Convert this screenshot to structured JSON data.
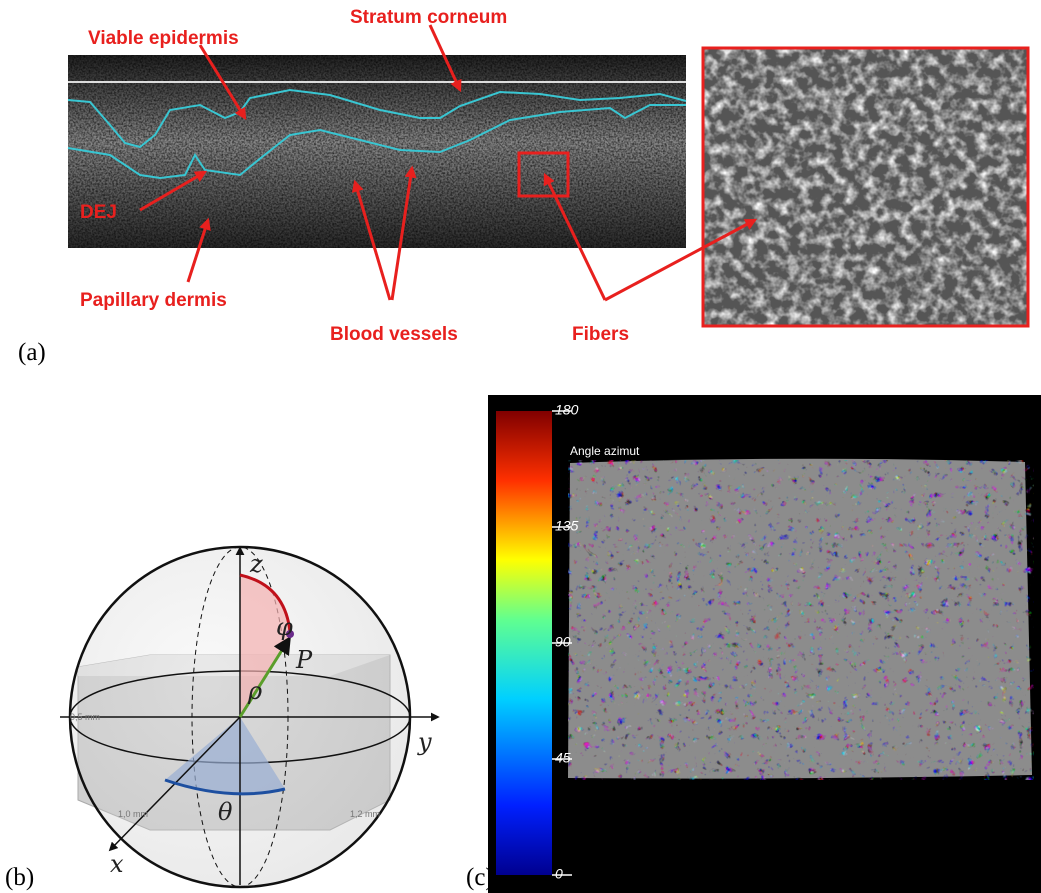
{
  "panel_a": {
    "tag": "(a)",
    "labels": {
      "viable_epidermis": "Viable epidermis",
      "stratum_corneum": "Stratum corneum",
      "dej": "DEJ",
      "papillary_dermis": "Papillary dermis",
      "blood_vessels": "Blood vessels",
      "fibers": "Fibers"
    }
  },
  "panel_b": {
    "tag": "(b)",
    "z": "z",
    "y": "y",
    "x": "x",
    "phi": "φ",
    "P": "P",
    "rho": "ρ",
    "theta": "θ",
    "dims": [
      "0,5 mm",
      "1,0 mm",
      "1,2 mm"
    ]
  },
  "panel_c": {
    "tag": "(c)",
    "map_title": "Angle azimut",
    "colorbar": {
      "range": [
        0,
        180
      ],
      "ticks": [
        0,
        45,
        90,
        135,
        180
      ]
    }
  }
}
